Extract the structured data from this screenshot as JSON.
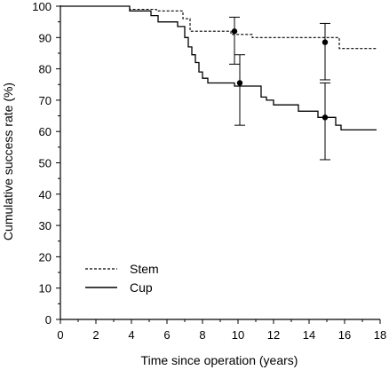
{
  "chart_data": {
    "type": "line",
    "title": "",
    "xlabel": "Time since operation (years)",
    "ylabel": "Cumulative success rate (%)",
    "xlim": [
      0,
      18
    ],
    "ylim": [
      0,
      100
    ],
    "xticks": [
      0,
      2,
      4,
      6,
      8,
      10,
      12,
      14,
      16,
      18
    ],
    "yticks": [
      0,
      10,
      20,
      30,
      40,
      50,
      60,
      70,
      80,
      90,
      100
    ],
    "grid": false,
    "legend_position": "bottom-left",
    "series": [
      {
        "name": "Stem",
        "style": "dashed",
        "color": "#000000",
        "steps": [
          [
            0,
            100
          ],
          [
            3.9,
            100
          ],
          [
            3.9,
            99
          ],
          [
            5.4,
            99
          ],
          [
            5.4,
            98.5
          ],
          [
            6.9,
            98.5
          ],
          [
            6.9,
            96
          ],
          [
            7.3,
            96
          ],
          [
            7.3,
            92
          ],
          [
            9.6,
            92
          ],
          [
            9.6,
            91
          ],
          [
            10.8,
            91
          ],
          [
            10.8,
            90
          ],
          [
            15.7,
            90
          ],
          [
            15.7,
            86.5
          ],
          [
            17.8,
            86.5
          ]
        ],
        "points": [
          {
            "x": 9.8,
            "y": 92,
            "err_low": 81.5,
            "err_high": 96.5
          },
          {
            "x": 14.9,
            "y": 88.5,
            "err_low": 76.5,
            "err_high": 94.5
          }
        ]
      },
      {
        "name": "Cup",
        "style": "solid",
        "color": "#000000",
        "steps": [
          [
            0,
            100
          ],
          [
            3.9,
            100
          ],
          [
            3.9,
            98.5
          ],
          [
            5.1,
            98.5
          ],
          [
            5.1,
            97
          ],
          [
            5.5,
            97
          ],
          [
            5.5,
            95
          ],
          [
            6.6,
            95
          ],
          [
            6.6,
            93.5
          ],
          [
            7.0,
            93.5
          ],
          [
            7.0,
            90
          ],
          [
            7.2,
            90
          ],
          [
            7.2,
            87
          ],
          [
            7.4,
            87
          ],
          [
            7.4,
            84.5
          ],
          [
            7.6,
            84.5
          ],
          [
            7.6,
            82
          ],
          [
            7.8,
            82
          ],
          [
            7.8,
            79
          ],
          [
            8.0,
            79
          ],
          [
            8.0,
            77
          ],
          [
            8.3,
            77
          ],
          [
            8.3,
            75.5
          ],
          [
            9.8,
            75.5
          ],
          [
            9.8,
            74.5
          ],
          [
            11.3,
            74.5
          ],
          [
            11.3,
            71
          ],
          [
            11.6,
            71
          ],
          [
            11.6,
            70
          ],
          [
            12.0,
            70
          ],
          [
            12.0,
            68.5
          ],
          [
            13.4,
            68.5
          ],
          [
            13.4,
            66.5
          ],
          [
            14.5,
            66.5
          ],
          [
            14.5,
            64.5
          ],
          [
            15.5,
            64.5
          ],
          [
            15.5,
            62
          ],
          [
            15.8,
            62
          ],
          [
            15.8,
            60.5
          ],
          [
            17.8,
            60.5
          ]
        ],
        "points": [
          {
            "x": 10.1,
            "y": 75.5,
            "err_low": 62,
            "err_high": 84.5
          },
          {
            "x": 14.9,
            "y": 64.5,
            "err_low": 51,
            "err_high": 75.5
          }
        ]
      }
    ]
  }
}
